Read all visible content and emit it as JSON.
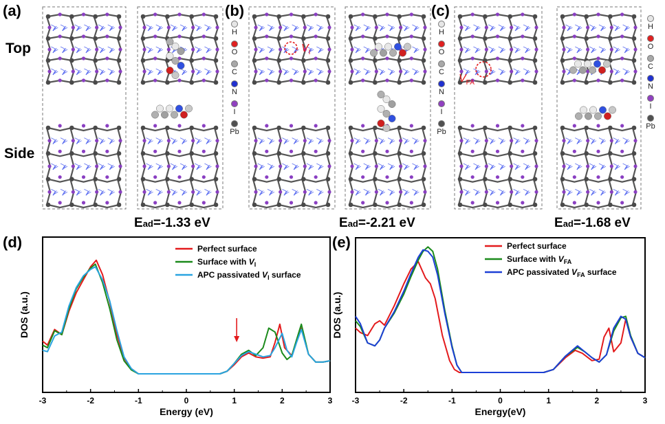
{
  "panel_labels": {
    "a": "(a)",
    "b": "(b)",
    "c": "(c)",
    "d": "(d)",
    "e": "(e)"
  },
  "row_labels": {
    "top": "Top",
    "side": "Side"
  },
  "adsorption": {
    "a": {
      "prefix": "E",
      "sub": "ad",
      "value": "=-1.33 eV"
    },
    "b": {
      "prefix": "E",
      "sub": "ad",
      "value": "=-2.21 eV"
    },
    "c": {
      "prefix": "E",
      "sub": "ad",
      "value": "=-1.68 eV"
    }
  },
  "vacancy_labels": {
    "b": {
      "main": "V",
      "sub": "I"
    },
    "c": {
      "main": "V",
      "sub": "FA"
    }
  },
  "element_legend": [
    {
      "symbol": "H",
      "color": "#e6e6e6"
    },
    {
      "symbol": "O",
      "color": "#e02020"
    },
    {
      "symbol": "C",
      "color": "#a8a8a8"
    },
    {
      "symbol": "N",
      "color": "#2030d0"
    },
    {
      "symbol": "I",
      "color": "#9040c0"
    },
    {
      "symbol": "Pb",
      "color": "#505050"
    }
  ],
  "chart_data": [
    {
      "type": "line",
      "panel": "(d)",
      "xlabel": "Energy (eV)",
      "ylabel": "DOS (a.u.)",
      "xlim": [
        -3,
        3
      ],
      "ylim": [
        0,
        1
      ],
      "xticks": [
        "-3",
        "-2",
        "-1",
        "0",
        "1",
        "2",
        "3"
      ],
      "arrow_annotation_x": 1.05,
      "series": [
        {
          "name": "Perfect surface",
          "color": "#e31a1c",
          "x": [
            -3,
            -2.9,
            -2.75,
            -2.6,
            -2.45,
            -2.3,
            -2.15,
            -2.0,
            -1.88,
            -1.75,
            -1.6,
            -1.45,
            -1.3,
            -1.15,
            -1.0,
            -0.9,
            0.7,
            0.85,
            1.0,
            1.15,
            1.3,
            1.45,
            1.6,
            1.75,
            1.85,
            1.95,
            2.05,
            2.2,
            2.3,
            2.4,
            2.55,
            2.7,
            2.85,
            3.0
          ],
          "y": [
            0.25,
            0.22,
            0.34,
            0.3,
            0.48,
            0.62,
            0.72,
            0.82,
            0.87,
            0.76,
            0.55,
            0.3,
            0.12,
            0.04,
            0.0,
            0.0,
            0.0,
            0.02,
            0.07,
            0.13,
            0.16,
            0.13,
            0.12,
            0.13,
            0.24,
            0.38,
            0.2,
            0.14,
            0.25,
            0.35,
            0.15,
            0.09,
            0.09,
            0.1
          ]
        },
        {
          "name": "Surface with V_I",
          "color": "#1a8a1a",
          "x": [
            -3,
            -2.9,
            -2.75,
            -2.6,
            -2.45,
            -2.3,
            -2.15,
            -2.0,
            -1.9,
            -1.75,
            -1.6,
            -1.45,
            -1.3,
            -1.15,
            -1.0,
            -0.9,
            0.7,
            0.85,
            1.0,
            1.15,
            1.3,
            1.45,
            1.6,
            1.72,
            1.85,
            2.0,
            2.1,
            2.2,
            2.3,
            2.4,
            2.55,
            2.7,
            2.85,
            3.0
          ],
          "y": [
            0.22,
            0.2,
            0.33,
            0.3,
            0.5,
            0.65,
            0.74,
            0.81,
            0.84,
            0.7,
            0.5,
            0.26,
            0.1,
            0.03,
            0.0,
            0.0,
            0.0,
            0.02,
            0.08,
            0.15,
            0.18,
            0.14,
            0.2,
            0.35,
            0.32,
            0.16,
            0.11,
            0.14,
            0.26,
            0.38,
            0.15,
            0.09,
            0.09,
            0.1
          ]
        },
        {
          "name": "APC passivated V_I surface",
          "color": "#29a3e0",
          "x": [
            -3,
            -2.9,
            -2.75,
            -2.6,
            -2.45,
            -2.3,
            -2.15,
            -2.0,
            -1.9,
            -1.75,
            -1.6,
            -1.45,
            -1.3,
            -1.15,
            -1.0,
            -0.9,
            0.7,
            0.85,
            1.0,
            1.15,
            1.3,
            1.45,
            1.6,
            1.75,
            1.85,
            2.0,
            2.1,
            2.2,
            2.3,
            2.4,
            2.55,
            2.7,
            2.85,
            3.0
          ],
          "y": [
            0.18,
            0.17,
            0.29,
            0.32,
            0.52,
            0.66,
            0.75,
            0.8,
            0.82,
            0.72,
            0.56,
            0.33,
            0.13,
            0.04,
            0.0,
            0.0,
            0.0,
            0.02,
            0.08,
            0.14,
            0.17,
            0.15,
            0.13,
            0.14,
            0.2,
            0.31,
            0.18,
            0.13,
            0.24,
            0.34,
            0.15,
            0.09,
            0.09,
            0.1
          ]
        }
      ]
    },
    {
      "type": "line",
      "panel": "(e)",
      "xlabel": "Energy(eV)",
      "ylabel": "DOS (a.u.)",
      "xlim": [
        -3,
        3
      ],
      "ylim": [
        0,
        1
      ],
      "xticks": [
        "-3",
        "-2",
        "-1",
        "0",
        "1",
        "2",
        "3"
      ],
      "series": [
        {
          "name": "Perfect surface",
          "color": "#e31a1c",
          "x": [
            -3,
            -2.9,
            -2.75,
            -2.6,
            -2.5,
            -2.4,
            -2.2,
            -2.0,
            -1.85,
            -1.7,
            -1.55,
            -1.45,
            -1.35,
            -1.2,
            -1.05,
            -0.95,
            -0.85,
            0.9,
            1.1,
            1.35,
            1.55,
            1.7,
            1.9,
            2.05,
            2.15,
            2.25,
            2.35,
            2.5,
            2.6,
            2.7,
            2.85,
            3.0
          ],
          "y": [
            0.3,
            0.27,
            0.25,
            0.33,
            0.35,
            0.32,
            0.45,
            0.6,
            0.7,
            0.75,
            0.64,
            0.6,
            0.5,
            0.25,
            0.08,
            0.02,
            0.0,
            0.0,
            0.02,
            0.1,
            0.15,
            0.13,
            0.08,
            0.09,
            0.24,
            0.3,
            0.14,
            0.2,
            0.36,
            0.24,
            0.13,
            0.1
          ]
        },
        {
          "name": "Surface with V_FA",
          "color": "#1a8a1a",
          "x": [
            -3,
            -2.9,
            -2.75,
            -2.6,
            -2.5,
            -2.4,
            -2.2,
            -2.0,
            -1.85,
            -1.7,
            -1.6,
            -1.5,
            -1.4,
            -1.3,
            -1.15,
            -1.0,
            -0.9,
            -0.8,
            0.9,
            1.1,
            1.35,
            1.6,
            1.75,
            1.9,
            2.05,
            2.2,
            2.35,
            2.5,
            2.6,
            2.7,
            2.85,
            3.0
          ],
          "y": [
            0.35,
            0.31,
            0.2,
            0.18,
            0.22,
            0.3,
            0.4,
            0.53,
            0.65,
            0.76,
            0.82,
            0.85,
            0.82,
            0.7,
            0.42,
            0.18,
            0.05,
            0.0,
            0.0,
            0.02,
            0.11,
            0.17,
            0.14,
            0.1,
            0.07,
            0.12,
            0.28,
            0.37,
            0.38,
            0.25,
            0.13,
            0.1
          ]
        },
        {
          "name": "APC passivated V_FA surface",
          "color": "#1c3fd6",
          "x": [
            -3,
            -2.9,
            -2.75,
            -2.6,
            -2.5,
            -2.4,
            -2.2,
            -2.0,
            -1.85,
            -1.7,
            -1.6,
            -1.5,
            -1.4,
            -1.3,
            -1.15,
            -1.0,
            -0.9,
            -0.8,
            0.9,
            1.1,
            1.35,
            1.6,
            1.75,
            1.9,
            2.05,
            2.2,
            2.35,
            2.5,
            2.6,
            2.7,
            2.85,
            3.0
          ],
          "y": [
            0.38,
            0.33,
            0.2,
            0.18,
            0.22,
            0.3,
            0.41,
            0.55,
            0.67,
            0.78,
            0.83,
            0.82,
            0.78,
            0.66,
            0.4,
            0.17,
            0.05,
            0.0,
            0.0,
            0.02,
            0.11,
            0.18,
            0.14,
            0.1,
            0.07,
            0.12,
            0.3,
            0.38,
            0.36,
            0.24,
            0.13,
            0.1
          ]
        }
      ]
    }
  ]
}
